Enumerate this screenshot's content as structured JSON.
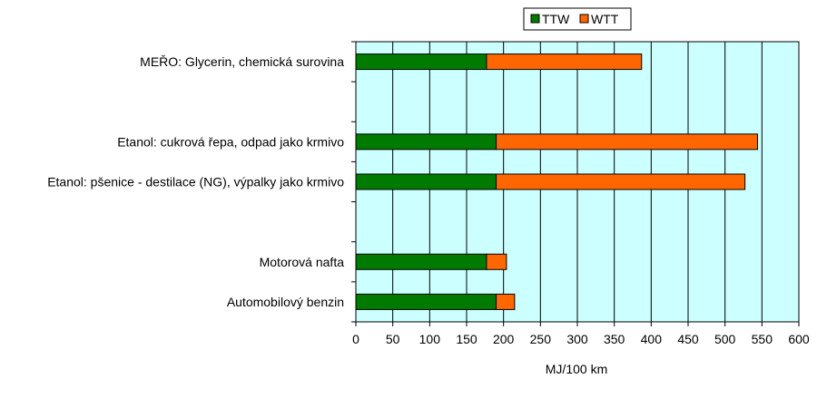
{
  "chart_data": {
    "type": "bar",
    "orientation": "horizontal",
    "stacked": true,
    "categories": [
      "MEŘO: Glycerin, chemická surovina",
      "",
      "Etanol: cukrová řepa, odpad jako krmivo",
      "Etanol: pšenice - destilace (NG), výpalky jako krmivo",
      "",
      "Motorová nafta",
      "Automobilový benzin"
    ],
    "series": [
      {
        "name": "TTW",
        "color": "#007A00",
        "values": [
          177,
          null,
          190,
          190,
          null,
          177,
          190
        ]
      },
      {
        "name": "WTT",
        "color": "#FF6600",
        "values": [
          210,
          null,
          354,
          337,
          null,
          27,
          25
        ]
      }
    ],
    "xlabel": "MJ/100 km",
    "ylabel": "",
    "xlim": [
      0,
      600
    ],
    "xticks": [
      0,
      50,
      100,
      150,
      200,
      250,
      300,
      350,
      400,
      450,
      500,
      550,
      600
    ],
    "grid": true,
    "plot_background": "#CCFFFF",
    "legend_position": "top-center"
  }
}
